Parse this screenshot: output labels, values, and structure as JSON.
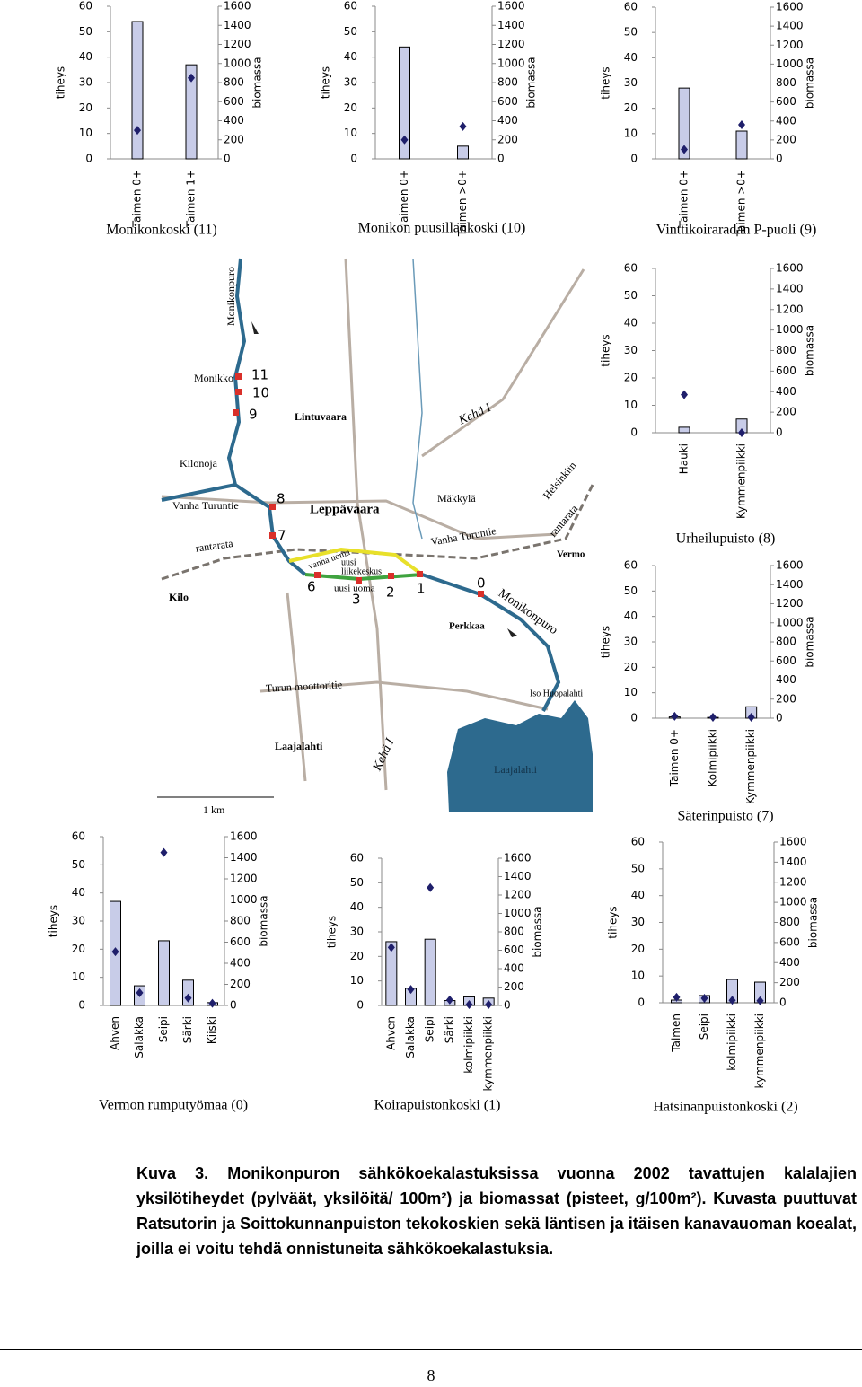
{
  "chart_data": [
    {
      "type": "combo",
      "title": "Monikonkoski (11)",
      "ylabel": "tiheys",
      "y2label": "biomassa",
      "categories": [
        "Taimen 0+",
        "Taimen 1+"
      ],
      "series": [
        {
          "type": "bar",
          "color": "#c8cce8",
          "values": [
            54,
            37
          ]
        },
        {
          "type": "scatter",
          "axis": "y2",
          "color": "#1f1f6b",
          "values": [
            300,
            850
          ]
        }
      ],
      "ylim": [
        0,
        60
      ],
      "yticks": [
        0,
        10,
        20,
        30,
        40,
        50,
        60
      ],
      "y2lim": [
        0,
        1600
      ],
      "y2ticks": [
        0,
        200,
        400,
        600,
        800,
        1000,
        1200,
        1400,
        1600
      ]
    },
    {
      "type": "combo",
      "title": "Monikon puusillankoski (10)",
      "ylabel": "tiheys",
      "y2label": "biomassa",
      "categories": [
        "Taimen 0+",
        "Taimen >0+"
      ],
      "series": [
        {
          "type": "bar",
          "color": "#c8cce8",
          "values": [
            44,
            5
          ]
        },
        {
          "type": "scatter",
          "axis": "y2",
          "color": "#1f1f6b",
          "values": [
            200,
            340
          ]
        }
      ],
      "ylim": [
        0,
        60
      ],
      "yticks": [
        0,
        10,
        20,
        30,
        40,
        50,
        60
      ],
      "y2lim": [
        0,
        1600
      ],
      "y2ticks": [
        0,
        200,
        400,
        600,
        800,
        1000,
        1200,
        1400,
        1600
      ]
    },
    {
      "type": "combo",
      "title": "Vinttikoiraradan P-puoli (9)",
      "ylabel": "tiheys",
      "y2label": "biomassa",
      "categories": [
        "Taimen 0+",
        "Taimen >0+"
      ],
      "series": [
        {
          "type": "bar",
          "color": "#c8cce8",
          "values": [
            28,
            11
          ]
        },
        {
          "type": "scatter",
          "axis": "y2",
          "color": "#1f1f6b",
          "values": [
            100,
            360
          ]
        }
      ],
      "ylim": [
        0,
        60
      ],
      "yticks": [
        0,
        10,
        20,
        30,
        40,
        50,
        60
      ],
      "y2lim": [
        0,
        1600
      ],
      "y2ticks": [
        0,
        200,
        400,
        600,
        800,
        1000,
        1200,
        1400,
        1600
      ]
    },
    {
      "type": "combo",
      "title": "Urheilupuisto (8)",
      "ylabel": "tiheys",
      "y2label": "biomassa",
      "categories": [
        "Hauki",
        "Kymmenpiikki"
      ],
      "series": [
        {
          "type": "bar",
          "color": "#c8cce8",
          "values": [
            2,
            5
          ]
        },
        {
          "type": "scatter",
          "axis": "y2",
          "color": "#1f1f6b",
          "values": [
            370,
            0
          ]
        }
      ],
      "ylim": [
        0,
        60
      ],
      "yticks": [
        0,
        10,
        20,
        30,
        40,
        50,
        60
      ],
      "y2lim": [
        0,
        1600
      ],
      "y2ticks": [
        0,
        200,
        400,
        600,
        800,
        1000,
        1200,
        1400,
        1600
      ]
    },
    {
      "type": "combo",
      "title": "Säterinpuisto (7)",
      "ylabel": "tiheys",
      "y2label": "biomassa",
      "categories": [
        "Taimen 0+",
        "Kolmipiikki",
        "Kymmenpiikki"
      ],
      "series": [
        {
          "type": "bar",
          "color": "#c8cce8",
          "values": [
            0.5,
            0.3,
            4.5
          ]
        },
        {
          "type": "scatter",
          "axis": "y2",
          "color": "#1f1f6b",
          "values": [
            20,
            10,
            10
          ]
        }
      ],
      "ylim": [
        0,
        60
      ],
      "yticks": [
        0,
        10,
        20,
        30,
        40,
        50,
        60
      ],
      "y2lim": [
        0,
        1600
      ],
      "y2ticks": [
        0,
        200,
        400,
        600,
        800,
        1000,
        1200,
        1400,
        1600
      ]
    },
    {
      "type": "combo",
      "title": "Vermon rumputyömaa (0)",
      "ylabel": "tiheys",
      "y2label": "biomassa",
      "categories": [
        "Ahven",
        "Salakka",
        "Seipi",
        "Särki",
        "Kiiski"
      ],
      "series": [
        {
          "type": "bar",
          "color": "#c8cce8",
          "values": [
            37,
            7,
            23,
            9,
            1
          ]
        },
        {
          "type": "scatter",
          "axis": "y2",
          "color": "#1f1f6b",
          "values": [
            510,
            120,
            1450,
            70,
            20
          ]
        }
      ],
      "ylim": [
        0,
        60
      ],
      "yticks": [
        0,
        10,
        20,
        30,
        40,
        50,
        60
      ],
      "y2lim": [
        0,
        1600
      ],
      "y2ticks": [
        0,
        200,
        400,
        600,
        800,
        1000,
        1200,
        1400,
        1600
      ]
    },
    {
      "type": "combo",
      "title": "Koirapuistonkoski (1)",
      "ylabel": "tiheys",
      "y2label": "biomassa",
      "categories": [
        "Ahven",
        "Salakka",
        "Seipi",
        "Särki",
        "kolmipiikki",
        "kymmenpiikki"
      ],
      "series": [
        {
          "type": "bar",
          "color": "#c8cce8",
          "values": [
            26,
            7,
            27,
            2,
            3.5,
            3
          ]
        },
        {
          "type": "scatter",
          "axis": "y2",
          "color": "#1f1f6b",
          "values": [
            630,
            175,
            1280,
            60,
            10,
            10
          ]
        }
      ],
      "ylim": [
        0,
        60
      ],
      "yticks": [
        0,
        10,
        20,
        30,
        40,
        50,
        60
      ],
      "y2lim": [
        0,
        1600
      ],
      "y2ticks": [
        0,
        200,
        400,
        600,
        800,
        1000,
        1200,
        1400,
        1600
      ]
    },
    {
      "type": "combo",
      "title": "Hatsinanpuistonkoski (2)",
      "ylabel": "tiheys",
      "y2label": "biomassa",
      "categories": [
        "Taimen",
        "Seipi",
        "kolmipiikki",
        "kymmenpiikki"
      ],
      "series": [
        {
          "type": "bar",
          "color": "#c8cce8",
          "values": [
            1,
            2.7,
            8.7,
            7.7
          ]
        },
        {
          "type": "scatter",
          "axis": "y2",
          "color": "#1f1f6b",
          "values": [
            55,
            45,
            25,
            20
          ]
        }
      ],
      "ylim": [
        0,
        60
      ],
      "yticks": [
        0,
        10,
        20,
        30,
        40,
        50,
        60
      ],
      "y2lim": [
        0,
        1600
      ],
      "y2ticks": [
        0,
        200,
        400,
        600,
        800,
        1000,
        1200,
        1400,
        1600
      ]
    }
  ],
  "map": {
    "labels": [
      "Monikonpuro",
      "Monikko",
      "11",
      "10",
      "9",
      "Lintuvaara",
      "Kehä I",
      "Kilonoja",
      "Vanha Turuntie",
      "8",
      "Leppävaara",
      "Mäkkylä",
      "Helsinkiin",
      "rantarata",
      "Vanha Turuntie",
      "rantarata",
      "7",
      "vanha uoma",
      "uusi",
      "liikekeskus",
      "uusi uoma",
      "6",
      "3",
      "2",
      "1",
      "0",
      "Kilo",
      "Vermo",
      "Monikonpuro",
      "Perkkaa",
      "Turun moottoritie",
      "Iso Huopalahti",
      "Laajalahti",
      "Kehä I",
      "Laajalahti",
      "1 km"
    ]
  },
  "caption": "Kuva 3. Monikonpuron sähkökoekalastuksissa vuonna 2002 tavattujen kalalajien yksilötiheydet (pylväät, yksilöitä/ 100m²) ja biomassat (pisteet, g/100m²). Kuvasta puuttuvat Ratsutorin ja Soittokunnanpuiston tekokoskien sekä läntisen ja itäisen kanavauoman koealat, joilla ei voitu tehdä onnistuneita sähkökoekalastuksia.",
  "page_number": "8"
}
